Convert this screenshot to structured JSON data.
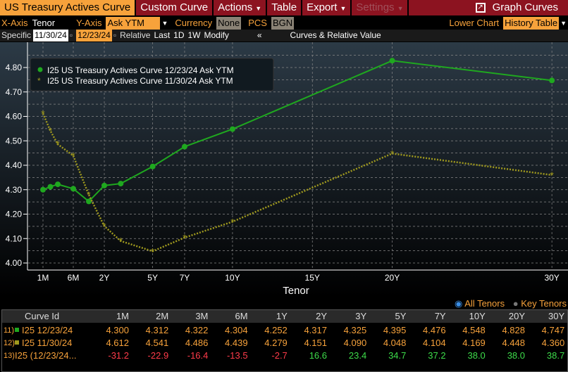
{
  "menu": {
    "title": "US Treasury Actives Curve",
    "custom": "Custom Curve",
    "actions": "Actions",
    "table": "Table",
    "export": "Export",
    "settings": "Settings",
    "graph": "Graph Curves"
  },
  "controls": {
    "xaxis_label": "X-Axis",
    "xaxis_value": "Tenor",
    "yaxis_label": "Y-Axis",
    "yaxis_value": "Ask YTM",
    "currency_label": "Currency",
    "currency_value": "None",
    "pcs_label": "PCS",
    "pcs_value": "BGN",
    "lower_chart_label": "Lower Chart",
    "lower_chart_value": "History Table"
  },
  "dates": {
    "specific_label": "Specific",
    "date1": "11/30/24",
    "date2": "12/23/24",
    "relative": "Relative",
    "last": "Last",
    "d1": "1D",
    "w1": "1W",
    "modify": "Modify",
    "collapse": "«",
    "panel": "Curves & Relative Value"
  },
  "chart_data": {
    "type": "line",
    "xlabel": "Tenor",
    "ylim": [
      4.0,
      4.85
    ],
    "yticks": [
      "4.00",
      "4.10",
      "4.20",
      "4.30",
      "4.40",
      "4.50",
      "4.60",
      "4.70",
      "4.80"
    ],
    "xticks": [
      "1M",
      "6M",
      "2Y",
      "5Y",
      "7Y",
      "10Y",
      "15Y",
      "20Y",
      "30Y"
    ],
    "tenors": [
      "1M",
      "2M",
      "3M",
      "6M",
      "1Y",
      "2Y",
      "3Y",
      "5Y",
      "7Y",
      "10Y",
      "20Y",
      "30Y"
    ],
    "legend_position": "top-left",
    "grid": true,
    "series": [
      {
        "name": "I25 US Treasury Actives Curve 12/23/24 Ask YTM",
        "color": "#1fa81f",
        "marker": "circle",
        "values": [
          4.3,
          4.312,
          4.322,
          4.304,
          4.252,
          4.317,
          4.325,
          4.395,
          4.476,
          4.548,
          4.828,
          4.747
        ]
      },
      {
        "name": "I25 US Treasury Actives Curve 11/30/24 Ask YTM",
        "color": "#a09a1e",
        "marker": "star",
        "values": [
          4.612,
          4.541,
          4.486,
          4.439,
          4.279,
          4.151,
          4.09,
          4.048,
          4.104,
          4.169,
          4.448,
          4.36
        ]
      }
    ]
  },
  "tenor_toggle": {
    "all": "All Tenors",
    "key": "Key Tenors"
  },
  "table": {
    "header": "Curve Id",
    "columns": [
      "1M",
      "2M",
      "3M",
      "6M",
      "1Y",
      "2Y",
      "3Y",
      "5Y",
      "7Y",
      "10Y",
      "20Y",
      "30Y"
    ],
    "rows": [
      {
        "num": "11)",
        "id": "I25 12/23/24",
        "color": "#1fa81f",
        "values": [
          "4.300",
          "4.312",
          "4.322",
          "4.304",
          "4.252",
          "4.317",
          "4.325",
          "4.395",
          "4.476",
          "4.548",
          "4.828",
          "4.747"
        ]
      },
      {
        "num": "12)",
        "id": "I25 11/30/24",
        "color": "#a09a1e",
        "values": [
          "4.612",
          "4.541",
          "4.486",
          "4.439",
          "4.279",
          "4.151",
          "4.090",
          "4.048",
          "4.104",
          "4.169",
          "4.448",
          "4.360"
        ]
      },
      {
        "num": "13)",
        "id": "I25 (12/23/24...",
        "values": [
          "-31.2",
          "-22.9",
          "-16.4",
          "-13.5",
          "-2.7",
          "16.6",
          "23.4",
          "34.7",
          "37.2",
          "38.0",
          "38.0",
          "38.7"
        ]
      }
    ]
  }
}
